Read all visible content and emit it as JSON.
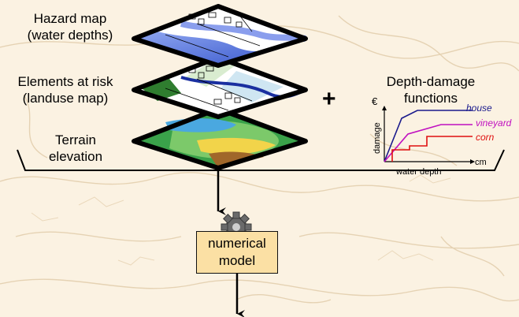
{
  "layers": {
    "hazard_label": "Hazard map\n(water depths)",
    "elements_label": "Elements at risk\n(landuse map)",
    "terrain_label": "Terrain\nelevation"
  },
  "ddf": {
    "title": "Depth-damage\nfunctions",
    "plus": "+",
    "y_unit": "€",
    "y_label": "damage",
    "x_label": "water depth",
    "x_unit": "cm",
    "curves": [
      {
        "name": "house",
        "color": "#1a1a8c"
      },
      {
        "name": "vineyard",
        "color": "#c010c0"
      },
      {
        "name": "corn",
        "color": "#e01010"
      }
    ]
  },
  "model": {
    "label": "numerical\nmodel",
    "gear_icon": "gear-icon"
  },
  "colors": {
    "box_fill": "#fbe0a4",
    "water_blue": "#4a6fd8",
    "background": "#fbf2e2"
  }
}
